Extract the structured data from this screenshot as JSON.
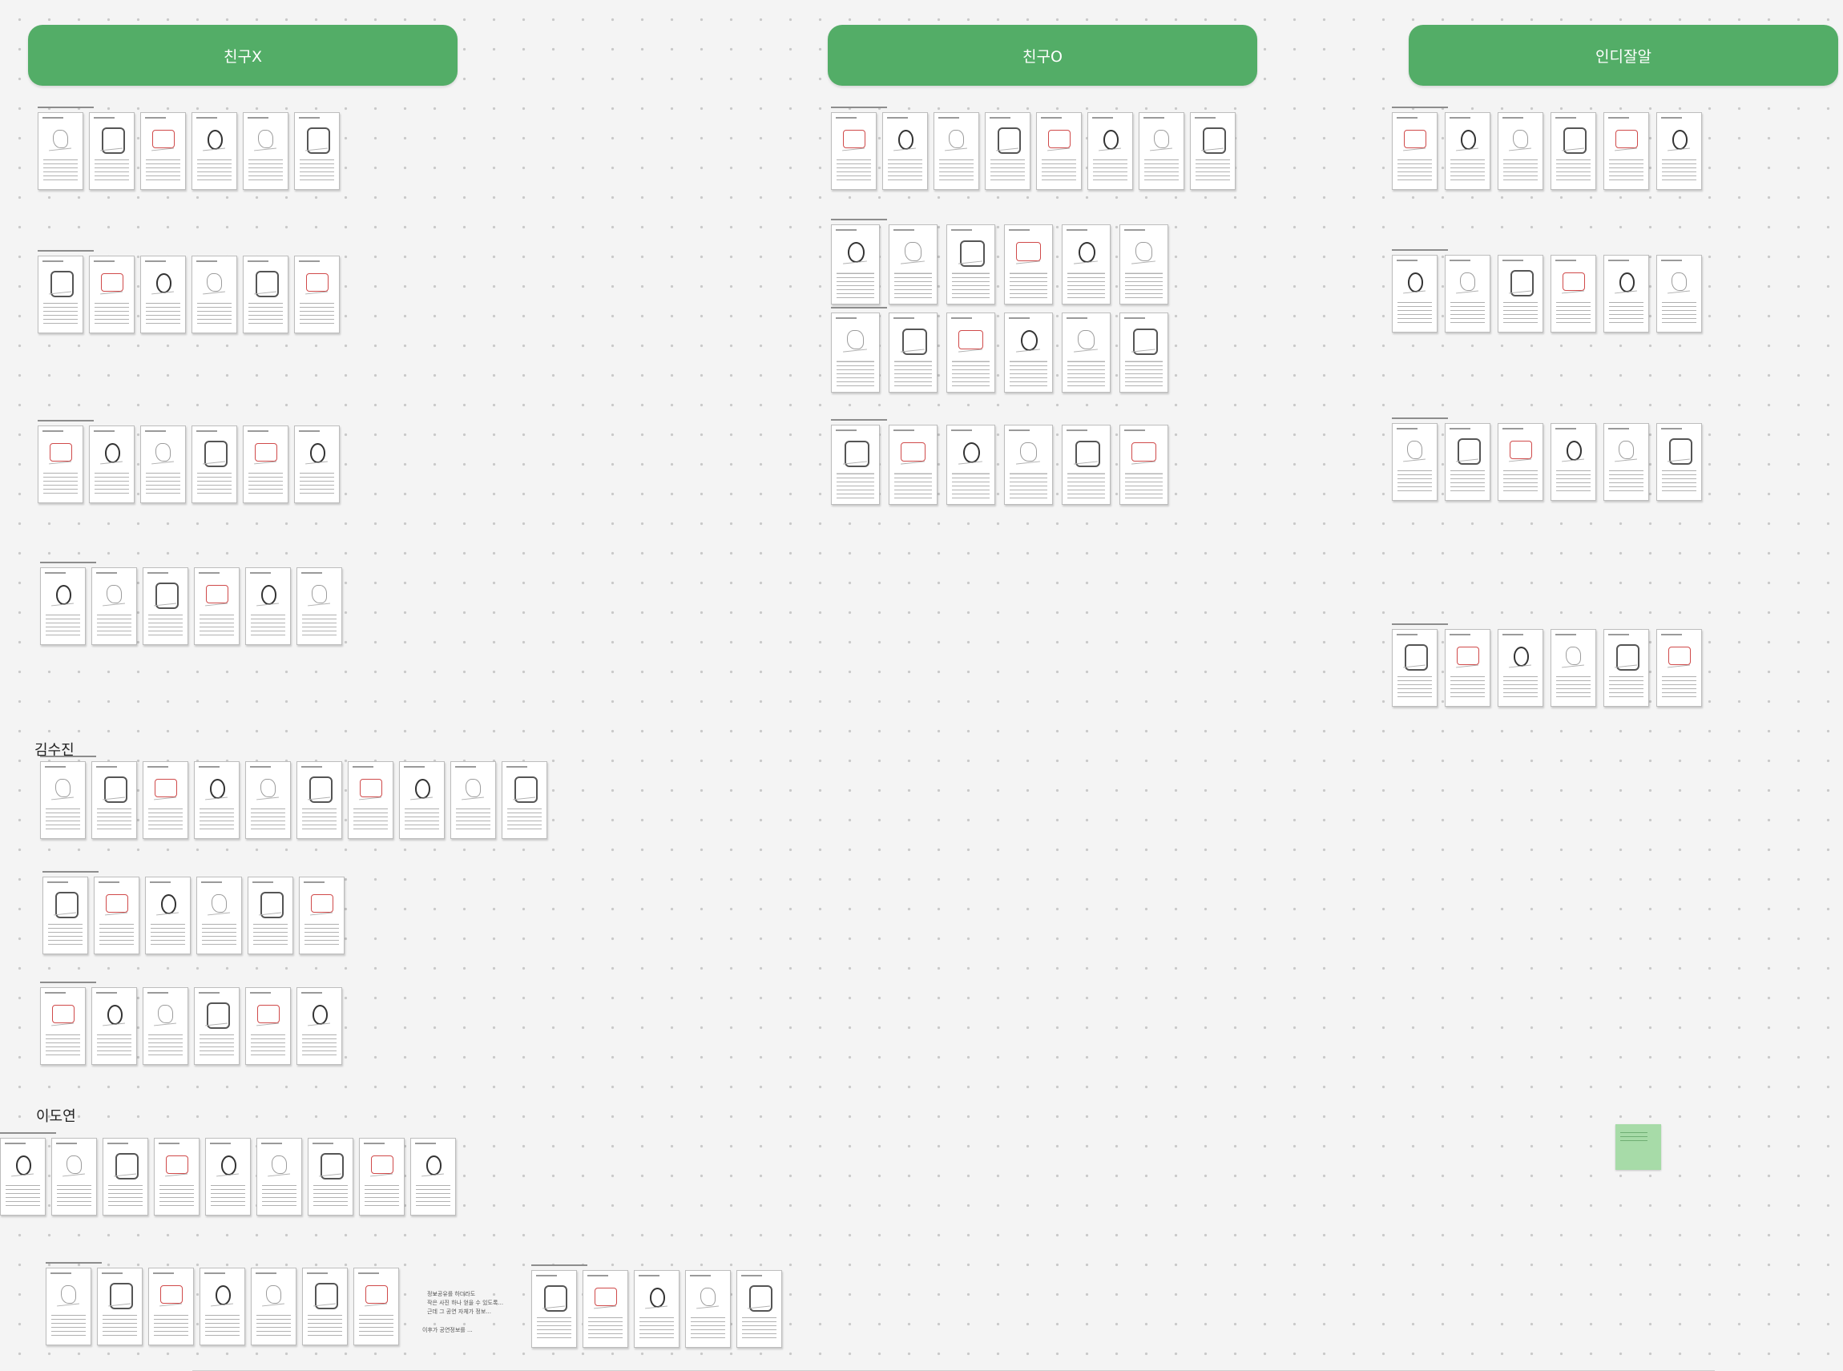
{
  "headers": [
    {
      "id": "friend-x",
      "label": "친구X"
    },
    {
      "id": "friend-o",
      "label": "친구O"
    },
    {
      "id": "indie",
      "label": "인디잘알"
    }
  ],
  "section_labels": [
    {
      "id": "kimsujin",
      "label": "김수진"
    },
    {
      "id": "leedoyeon",
      "label": "이도연"
    }
  ],
  "notes": [
    {
      "id": "note-1",
      "text": "정보공유를 하더라도\n작은 사진 하나 얻을 수 있도록...\n근데 그 공연 자체가 정보...\n"
    },
    {
      "id": "note-2",
      "text": "이후가 공연정보를 ..."
    }
  ],
  "colors": {
    "header_green": "#53ad67",
    "sticky_green": "#a7dba8",
    "canvas_bg": "#f4f4f4",
    "grid_dot": "#c9c9c9"
  }
}
